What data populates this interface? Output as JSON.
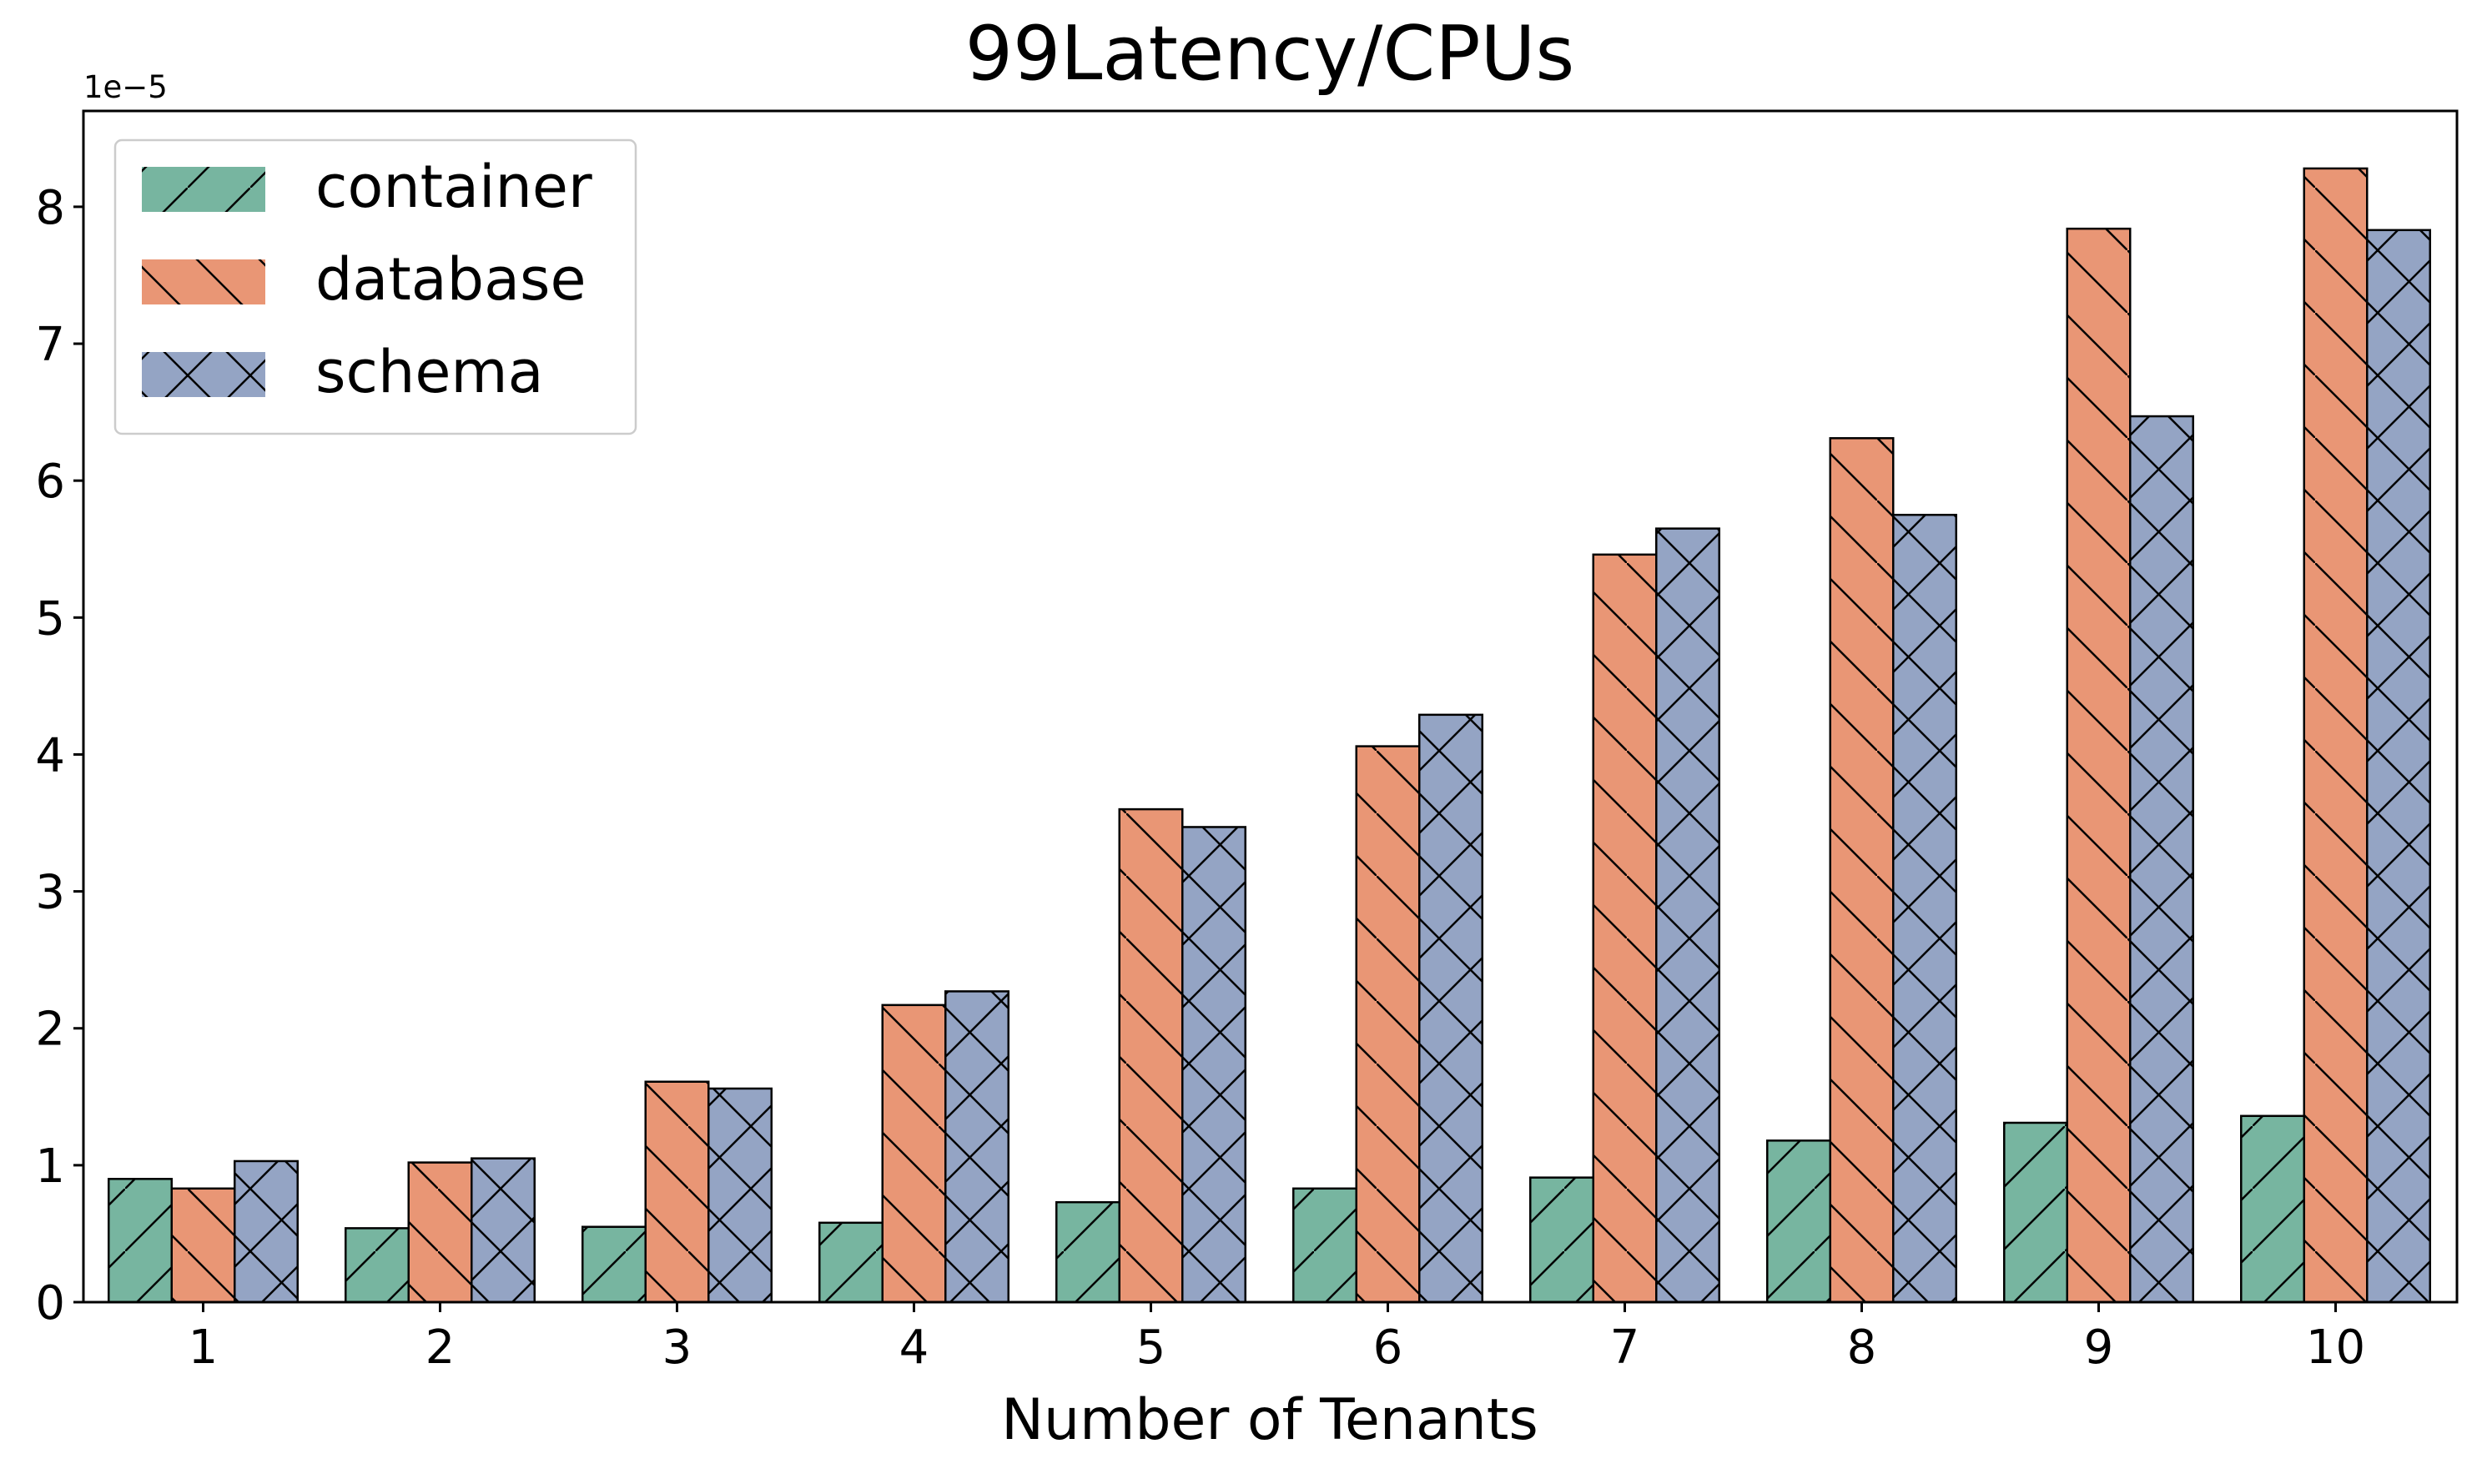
{
  "chart_data": {
    "type": "bar",
    "title": "99Latency/CPUs",
    "xlabel": "Number of Tenants",
    "ylabel": "",
    "offset_label": "1e−5",
    "categories": [
      "1",
      "2",
      "3",
      "4",
      "5",
      "6",
      "7",
      "8",
      "9",
      "10"
    ],
    "y_ticks": [
      "0",
      "1",
      "2",
      "3",
      "4",
      "5",
      "6",
      "7",
      "8"
    ],
    "ylim": [
      0,
      8.7
    ],
    "grid": false,
    "legend_position": "top-left",
    "series": [
      {
        "name": "container",
        "color": "#77b5a0",
        "hatch": "forward-slash",
        "values": [
          0.9,
          0.54,
          0.55,
          0.58,
          0.73,
          0.83,
          0.91,
          1.18,
          1.31,
          1.36
        ]
      },
      {
        "name": "database",
        "color": "#e99675",
        "hatch": "back-slash",
        "values": [
          0.83,
          1.02,
          1.61,
          2.17,
          3.6,
          4.06,
          5.46,
          6.31,
          7.84,
          8.28
        ]
      },
      {
        "name": "schema",
        "color": "#94a4c4",
        "hatch": "cross",
        "values": [
          1.03,
          1.05,
          1.56,
          2.27,
          3.47,
          4.29,
          5.65,
          5.75,
          6.47,
          7.83
        ]
      }
    ]
  }
}
